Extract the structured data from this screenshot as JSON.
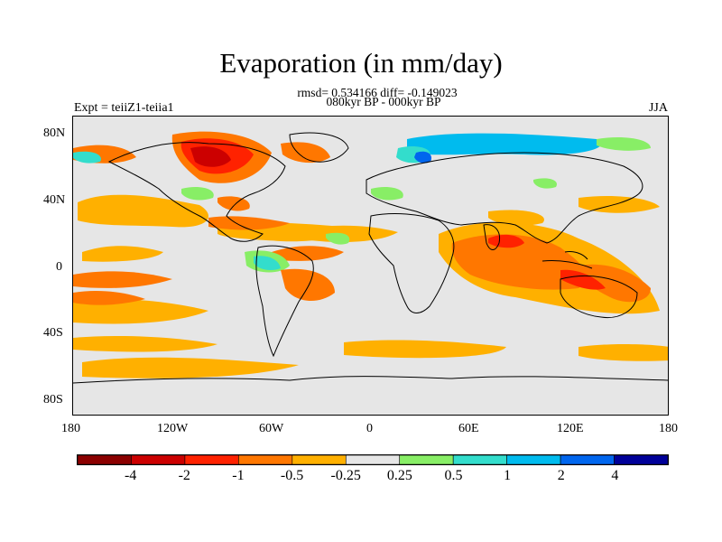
{
  "title": "Evaporation (in mm/day)",
  "stats": "rmsd= 0.534166 diff= -0.149023",
  "period": "080kyr BP - 000kyr BP",
  "experiment": "Expt = teiiZ1-teiia1",
  "season": "JJA",
  "chart_data": {
    "type": "heatmap",
    "variable": "Evaporation difference",
    "units": "mm/day",
    "projection": "cylindrical equidistant",
    "lon_range": [
      -180,
      180
    ],
    "lat_range": [
      -90,
      90
    ],
    "lat_ticks": [
      "80N",
      "40N",
      "0",
      "40S",
      "80S"
    ],
    "lon_ticks": [
      "180",
      "120W",
      "60W",
      "0",
      "60E",
      "120E",
      "180"
    ],
    "levels": [
      -4,
      -2,
      -1,
      -0.5,
      -0.25,
      0.25,
      0.5,
      1,
      2,
      4
    ],
    "level_labels": [
      "-4",
      "-2",
      "-1",
      "-0.5",
      "-0.25",
      "0.25",
      "0.5",
      "1",
      "2",
      "4"
    ],
    "colors": [
      "#8b0000",
      "#cc0000",
      "#ff2200",
      "#ff7700",
      "#ffb000",
      "#e6e6e6",
      "#88ee66",
      "#33ddcc",
      "#00bbee",
      "#0066ee",
      "#000099"
    ]
  }
}
